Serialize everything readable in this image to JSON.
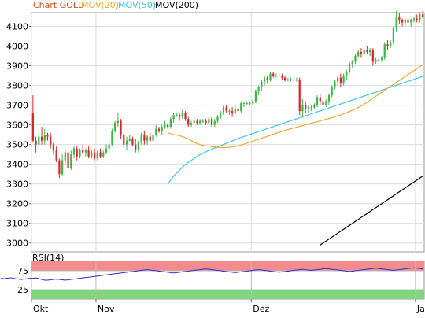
{
  "legend": {
    "chart_label": "Chart GOLD",
    "mov20_label": "MOV(20)",
    "mov50_label": "MOV(50)",
    "mov200_label": "MOV(200)"
  },
  "rsi_panel": {
    "title": "RSI(14)"
  },
  "colors": {
    "up": "#3cb54a",
    "down": "#d8262b",
    "mov20": "#f0a830",
    "mov50": "#3cc6e6",
    "mov200": "#000000",
    "rsi_line": "#2d2dcc",
    "rsi_over": "#f28c8c",
    "rsi_under": "#7fd67f",
    "legend_chart": "#d84e1a"
  },
  "chart_data": [
    {
      "type": "candlestick",
      "title": "Chart GOLD",
      "y_ticks": [
        3000,
        3100,
        3200,
        3300,
        3400,
        3500,
        3600,
        3700,
        3800,
        3900,
        4000,
        4100
      ],
      "ylim": [
        2955,
        4170
      ],
      "x_tick_labels": [
        "Okt",
        "Nov",
        "Dez",
        "Jan"
      ],
      "x_tick_index": [
        0,
        22,
        75,
        131
      ],
      "grid": true,
      "candles": [
        [
          3660,
          3750,
          3510,
          3520
        ],
        [
          3520,
          3540,
          3460,
          3500
        ],
        [
          3500,
          3560,
          3480,
          3540
        ],
        [
          3540,
          3590,
          3500,
          3520
        ],
        [
          3520,
          3580,
          3500,
          3550
        ],
        [
          3550,
          3560,
          3520,
          3540
        ],
        [
          3540,
          3560,
          3480,
          3500
        ],
        [
          3500,
          3510,
          3450,
          3470
        ],
        [
          3470,
          3490,
          3410,
          3420
        ],
        [
          3420,
          3430,
          3330,
          3350
        ],
        [
          3350,
          3450,
          3340,
          3420
        ],
        [
          3420,
          3480,
          3400,
          3460
        ],
        [
          3460,
          3490,
          3360,
          3380
        ],
        [
          3380,
          3470,
          3370,
          3450
        ],
        [
          3450,
          3490,
          3430,
          3480
        ],
        [
          3480,
          3490,
          3420,
          3440
        ],
        [
          3440,
          3480,
          3430,
          3470
        ],
        [
          3470,
          3500,
          3450,
          3460
        ],
        [
          3460,
          3480,
          3440,
          3470
        ],
        [
          3470,
          3490,
          3430,
          3440
        ],
        [
          3440,
          3470,
          3430,
          3460
        ],
        [
          3460,
          3480,
          3420,
          3430
        ],
        [
          3430,
          3470,
          3420,
          3460
        ],
        [
          3460,
          3480,
          3430,
          3440
        ],
        [
          3440,
          3470,
          3430,
          3460
        ],
        [
          3460,
          3500,
          3450,
          3480
        ],
        [
          3480,
          3520,
          3460,
          3500
        ],
        [
          3500,
          3580,
          3490,
          3570
        ],
        [
          3570,
          3620,
          3560,
          3610
        ],
        [
          3610,
          3660,
          3590,
          3620
        ],
        [
          3620,
          3630,
          3530,
          3550
        ],
        [
          3550,
          3560,
          3480,
          3500
        ],
        [
          3500,
          3540,
          3470,
          3520
        ],
        [
          3520,
          3550,
          3510,
          3530
        ],
        [
          3530,
          3540,
          3490,
          3500
        ],
        [
          3500,
          3530,
          3460,
          3470
        ],
        [
          3470,
          3520,
          3460,
          3510
        ],
        [
          3510,
          3560,
          3500,
          3550
        ],
        [
          3550,
          3570,
          3500,
          3520
        ],
        [
          3520,
          3550,
          3500,
          3540
        ],
        [
          3540,
          3560,
          3510,
          3520
        ],
        [
          3520,
          3560,
          3510,
          3550
        ],
        [
          3550,
          3600,
          3540,
          3580
        ],
        [
          3580,
          3590,
          3560,
          3570
        ],
        [
          3570,
          3600,
          3550,
          3590
        ],
        [
          3590,
          3620,
          3580,
          3600
        ],
        [
          3600,
          3610,
          3580,
          3590
        ],
        [
          3590,
          3640,
          3580,
          3630
        ],
        [
          3630,
          3660,
          3610,
          3650
        ],
        [
          3650,
          3660,
          3640,
          3650
        ],
        [
          3650,
          3660,
          3620,
          3640
        ],
        [
          3640,
          3680,
          3630,
          3660
        ],
        [
          3660,
          3670,
          3620,
          3630
        ],
        [
          3630,
          3640,
          3590,
          3600
        ],
        [
          3600,
          3620,
          3590,
          3610
        ],
        [
          3610,
          3640,
          3600,
          3620
        ],
        [
          3620,
          3630,
          3600,
          3610
        ],
        [
          3610,
          3630,
          3600,
          3620
        ],
        [
          3620,
          3630,
          3610,
          3620
        ],
        [
          3620,
          3630,
          3600,
          3610
        ],
        [
          3610,
          3640,
          3600,
          3630
        ],
        [
          3630,
          3640,
          3590,
          3600
        ],
        [
          3600,
          3630,
          3590,
          3620
        ],
        [
          3620,
          3650,
          3610,
          3640
        ],
        [
          3640,
          3670,
          3630,
          3660
        ],
        [
          3660,
          3700,
          3650,
          3690
        ],
        [
          3690,
          3700,
          3660,
          3670
        ],
        [
          3670,
          3680,
          3650,
          3670
        ],
        [
          3670,
          3690,
          3640,
          3660
        ],
        [
          3660,
          3700,
          3650,
          3680
        ],
        [
          3680,
          3700,
          3660,
          3670
        ],
        [
          3670,
          3720,
          3660,
          3710
        ],
        [
          3710,
          3720,
          3690,
          3710
        ],
        [
          3710,
          3720,
          3700,
          3710
        ],
        [
          3710,
          3720,
          3700,
          3710
        ],
        [
          3710,
          3730,
          3700,
          3720
        ],
        [
          3720,
          3780,
          3710,
          3770
        ],
        [
          3770,
          3800,
          3750,
          3790
        ],
        [
          3790,
          3830,
          3770,
          3820
        ],
        [
          3820,
          3850,
          3800,
          3840
        ],
        [
          3840,
          3850,
          3810,
          3830
        ],
        [
          3830,
          3870,
          3820,
          3860
        ],
        [
          3860,
          3870,
          3840,
          3850
        ],
        [
          3850,
          3860,
          3840,
          3850
        ],
        [
          3850,
          3860,
          3840,
          3850
        ],
        [
          3850,
          3860,
          3830,
          3840
        ],
        [
          3840,
          3850,
          3820,
          3830
        ],
        [
          3830,
          3840,
          3820,
          3830
        ],
        [
          3830,
          3840,
          3820,
          3830
        ],
        [
          3830,
          3840,
          3820,
          3830
        ],
        [
          3830,
          3840,
          3820,
          3830
        ],
        [
          3830,
          3840,
          3650,
          3670
        ],
        [
          3670,
          3730,
          3640,
          3700
        ],
        [
          3700,
          3720,
          3660,
          3680
        ],
        [
          3680,
          3700,
          3660,
          3690
        ],
        [
          3690,
          3700,
          3670,
          3690
        ],
        [
          3690,
          3710,
          3680,
          3700
        ],
        [
          3700,
          3750,
          3690,
          3740
        ],
        [
          3740,
          3760,
          3700,
          3720
        ],
        [
          3720,
          3730,
          3690,
          3700
        ],
        [
          3700,
          3730,
          3690,
          3720
        ],
        [
          3720,
          3760,
          3700,
          3750
        ],
        [
          3750,
          3800,
          3740,
          3790
        ],
        [
          3790,
          3830,
          3780,
          3820
        ],
        [
          3820,
          3850,
          3800,
          3840
        ],
        [
          3840,
          3860,
          3790,
          3810
        ],
        [
          3810,
          3860,
          3800,
          3850
        ],
        [
          3850,
          3880,
          3830,
          3870
        ],
        [
          3870,
          3920,
          3860,
          3910
        ],
        [
          3910,
          3930,
          3890,
          3920
        ],
        [
          3920,
          3960,
          3910,
          3950
        ],
        [
          3950,
          3980,
          3940,
          3970
        ],
        [
          3970,
          3990,
          3940,
          3960
        ],
        [
          3960,
          3990,
          3950,
          3980
        ],
        [
          3980,
          4000,
          3960,
          3970
        ],
        [
          3970,
          3990,
          3950,
          3980
        ],
        [
          3980,
          3990,
          3900,
          3920
        ],
        [
          3920,
          3940,
          3910,
          3930
        ],
        [
          3930,
          3940,
          3910,
          3930
        ],
        [
          3930,
          3950,
          3920,
          3940
        ],
        [
          3940,
          4020,
          3930,
          4010
        ],
        [
          4010,
          4030,
          3980,
          4000
        ],
        [
          4000,
          4030,
          3990,
          4020
        ],
        [
          4020,
          4100,
          4010,
          4090
        ],
        [
          4090,
          4180,
          4070,
          4150
        ],
        [
          4150,
          4170,
          4110,
          4130
        ],
        [
          4130,
          4140,
          4100,
          4120
        ],
        [
          4120,
          4140,
          4100,
          4130
        ],
        [
          4130,
          4140,
          4110,
          4120
        ],
        [
          4120,
          4140,
          4100,
          4130
        ],
        [
          4130,
          4150,
          4120,
          4140
        ],
        [
          4140,
          4160,
          4120,
          4130
        ],
        [
          4130,
          4170,
          4120,
          4160
        ],
        [
          4160,
          4180,
          4140,
          4150
        ]
      ],
      "mov20": [
        3560,
        3555,
        3550,
        3548,
        3545,
        3540,
        3535,
        3528,
        3520,
        3512,
        3505,
        3500,
        3496,
        3493,
        3492,
        3490,
        3488,
        3486,
        3485,
        3484,
        3485,
        3486,
        3488,
        3490,
        3493,
        3497,
        3502,
        3507,
        3512,
        3517,
        3522,
        3527,
        3532,
        3537,
        3542,
        3547,
        3552,
        3557,
        3562,
        3567,
        3572,
        3576,
        3580,
        3584,
        3588,
        3592,
        3596,
        3600,
        3604,
        3608,
        3612,
        3616,
        3620,
        3624,
        3628,
        3632,
        3636,
        3640,
        3645,
        3650,
        3656,
        3662,
        3668,
        3674,
        3680,
        3688,
        3696,
        3705,
        3715,
        3725,
        3735,
        3745,
        3755,
        3765,
        3775,
        3785,
        3795,
        3805,
        3815,
        3825,
        3835,
        3845,
        3855,
        3865,
        3875,
        3885,
        3895,
        3905
      ],
      "mov50": [
        3300,
        3320,
        3340,
        3355,
        3370,
        3385,
        3398,
        3410,
        3420,
        3430,
        3440,
        3448,
        3456,
        3463,
        3470,
        3476,
        3482,
        3488,
        3494,
        3500,
        3506,
        3512,
        3518,
        3524,
        3530,
        3536,
        3541,
        3546,
        3551,
        3556,
        3561,
        3566,
        3571,
        3576,
        3581,
        3586,
        3591,
        3596,
        3601,
        3606,
        3611,
        3616,
        3621,
        3626,
        3631,
        3636,
        3641,
        3646,
        3651,
        3656,
        3661,
        3666,
        3671,
        3676,
        3681,
        3686,
        3691,
        3696,
        3701,
        3706,
        3711,
        3716,
        3721,
        3726,
        3731,
        3736,
        3741,
        3746,
        3751,
        3756,
        3761,
        3766,
        3771,
        3776,
        3781,
        3786,
        3791,
        3796,
        3801,
        3806,
        3811,
        3816,
        3821,
        3826,
        3831,
        3836,
        3841,
        3846
      ],
      "mov200": [
        2990,
        3000,
        3010,
        3020,
        3030,
        3040,
        3050,
        3060,
        3070,
        3080,
        3090,
        3100,
        3110,
        3120,
        3130,
        3140,
        3150,
        3160,
        3170,
        3180,
        3190,
        3200,
        3210,
        3220,
        3230,
        3240,
        3250,
        3260,
        3270,
        3280,
        3290,
        3300,
        3310,
        3320,
        3330,
        3340
      ]
    },
    {
      "type": "line",
      "title": "RSI(14)",
      "y_ticks": [
        25,
        75
      ],
      "ylim": [
        0,
        100
      ],
      "bands": {
        "overbought": 75,
        "oversold": 25
      },
      "values": [
        55,
        54,
        55,
        56,
        56,
        54,
        53,
        52,
        53,
        54,
        55,
        55,
        56,
        54,
        52,
        50,
        50,
        51,
        52,
        53,
        52,
        51,
        50,
        51,
        52,
        53,
        54,
        55,
        56,
        57,
        58,
        59,
        60,
        61,
        62,
        63,
        64,
        65,
        66,
        67,
        68,
        69,
        70,
        71,
        72,
        73,
        74,
        75,
        76,
        77,
        78,
        77,
        76,
        75,
        74,
        73,
        72,
        71,
        70,
        69,
        70,
        71,
        72,
        73,
        74,
        75,
        76,
        77,
        78,
        79,
        80,
        79,
        78,
        77,
        76,
        75,
        74,
        73,
        72,
        71,
        70,
        71,
        72,
        73,
        74,
        75,
        76,
        77,
        78,
        77,
        76,
        75,
        74,
        73,
        72,
        71,
        72,
        73,
        74,
        75,
        76,
        77,
        78,
        79,
        78,
        77,
        76,
        77,
        78,
        79,
        80,
        81,
        80,
        79,
        78,
        77,
        76,
        75,
        74,
        73,
        74,
        75,
        76,
        77,
        78,
        79,
        80,
        81,
        82,
        81,
        80,
        79,
        78,
        77,
        76,
        77,
        78,
        79,
        80,
        81,
        82,
        83,
        82,
        81,
        80
      ]
    }
  ]
}
